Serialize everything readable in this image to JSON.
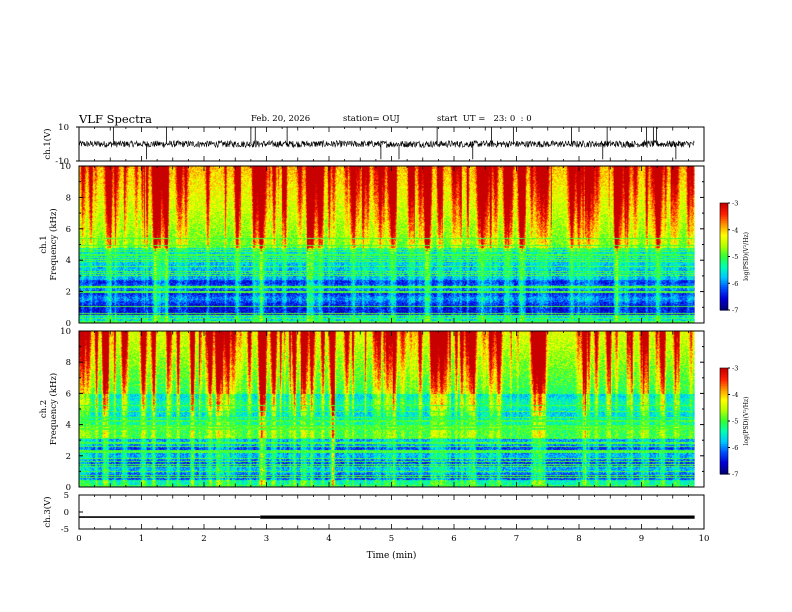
{
  "header": {
    "title": "VLF Spectra",
    "date": "Feb. 20, 2026",
    "station": "station= OUJ",
    "start": "start  UT =   23: 0  : 0"
  },
  "colors": {
    "spectrum": [
      "#00007a",
      "#0000d8",
      "#0050ff",
      "#00c8ff",
      "#00ffb4",
      "#32ff32",
      "#b4ff00",
      "#ffff00",
      "#ff9600",
      "#ff1e00",
      "#c80000"
    ],
    "trace": "#000000"
  },
  "chart_data": [
    {
      "type": "line",
      "id": "ch1-waveform",
      "ylabel": "ch.1(V)",
      "ylim": [
        -10,
        10
      ],
      "yticks": [
        "10",
        "-10"
      ],
      "baseline": 0,
      "description_of_series": "continuous waveform with spikes reaching ±10 V"
    },
    {
      "type": "heatmap",
      "id": "ch1-spectrogram",
      "ylabel_top": "ch.1",
      "ylabel": "Frequency (kHz)",
      "ylim": [
        0,
        10
      ],
      "yticks": [
        "0",
        "2",
        "4",
        "6",
        "8",
        "10"
      ],
      "xlim": [
        0,
        9.85
      ],
      "colorbar": {
        "label": "log(PSD)(V²/Hz)",
        "range": [
          -7,
          -3
        ],
        "ticks": [
          "-3",
          "-4",
          "-5",
          "-6",
          "-7"
        ]
      }
    },
    {
      "type": "heatmap",
      "id": "ch2-spectrogram",
      "ylabel_top": "ch.2",
      "ylabel": "Frequency (kHz)",
      "ylim": [
        0,
        10
      ],
      "yticks": [
        "0",
        "2",
        "4",
        "6",
        "8",
        "10"
      ],
      "xlim": [
        0,
        9.85
      ],
      "colorbar": {
        "label": "log(PSD)(V²/Hz)",
        "range": [
          -7,
          -3
        ],
        "ticks": [
          "-3",
          "-4",
          "-5",
          "-6",
          "-7"
        ]
      }
    },
    {
      "type": "line",
      "id": "ch3-waveform",
      "ylabel": "ch.3(V)",
      "ylim": [
        -5,
        5
      ],
      "yticks": [
        "5",
        "0",
        "-5"
      ],
      "level_V": -1.5,
      "thicken_after_min": 2.9
    }
  ],
  "x_axis": {
    "xlabel": "Time (min)",
    "xlim": [
      0,
      10
    ],
    "ticks": [
      "0",
      "1",
      "2",
      "3",
      "4",
      "5",
      "6",
      "7",
      "8",
      "9",
      "10"
    ]
  }
}
